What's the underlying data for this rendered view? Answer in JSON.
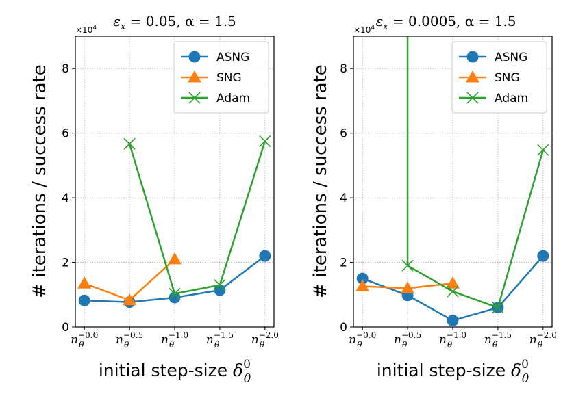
{
  "figure": {
    "ylabel": "# iterations / success rate",
    "xlabel_text": "initial step-size ",
    "xlabel_symbol": "δ",
    "xlabel_sub": "θ",
    "xlabel_sup": "0"
  },
  "chart_data": [
    {
      "type": "line",
      "title": "εx = 0.05, α = 1.5",
      "title_parts": {
        "eps": "ε",
        "eps_sub": "x",
        "rest": " = 0.05, α = 1.5"
      },
      "offset_label": "×10",
      "offset_exp": "4",
      "x_base": "n",
      "x_base_sub": "θ",
      "xtick_exponents": [
        "−0.0",
        "−0.5",
        "−1.0",
        "−1.5",
        "−2.0"
      ],
      "x": [
        0,
        0.5,
        1.0,
        1.5,
        2.0
      ],
      "xlim": [
        -0.1,
        2.1
      ],
      "ylim": [
        0,
        9
      ],
      "yticks": [
        0,
        2,
        4,
        6,
        8
      ],
      "ytick_labels": [
        "0",
        "2",
        "4",
        "6",
        "8"
      ],
      "grid": true,
      "legend_position": "top-right",
      "series": [
        {
          "name": "ASNG",
          "color": "#1f77b4",
          "marker": "circle",
          "values": [
            0.82,
            0.77,
            0.91,
            1.14,
            2.2
          ]
        },
        {
          "name": "SNG",
          "color": "#ff7f0e",
          "marker": "triangle",
          "values": [
            1.35,
            0.83,
            2.1,
            null,
            null
          ]
        },
        {
          "name": "Adam",
          "color": "#2ca02c",
          "marker": "x",
          "values": [
            null,
            5.67,
            1.03,
            1.3,
            5.75
          ]
        }
      ]
    },
    {
      "type": "line",
      "title": "εx = 0.0005, α = 1.5",
      "title_parts": {
        "eps": "ε",
        "eps_sub": "x",
        "rest": " = 0.0005, α = 1.5"
      },
      "offset_label": "×10",
      "offset_exp": "4",
      "x_base": "n",
      "x_base_sub": "θ",
      "xtick_exponents": [
        "−0.0",
        "−0.5",
        "−1.0",
        "−1.5",
        "−2.0"
      ],
      "x": [
        0,
        0.5,
        1.0,
        1.5,
        2.0
      ],
      "xlim": [
        -0.1,
        2.1
      ],
      "ylim": [
        0,
        9
      ],
      "yticks": [
        0,
        2,
        4,
        6,
        8
      ],
      "ytick_labels": [
        "0",
        "2",
        "4",
        "6",
        "8"
      ],
      "grid": true,
      "legend_position": "top-right",
      "series": [
        {
          "name": "ASNG",
          "color": "#1f77b4",
          "marker": "circle",
          "values": [
            1.5,
            0.98,
            0.2,
            0.6,
            2.2
          ]
        },
        {
          "name": "SNG",
          "color": "#ff7f0e",
          "marker": "triangle",
          "values": [
            1.26,
            1.2,
            1.35,
            null,
            null
          ]
        },
        {
          "name": "Adam",
          "color": "#2ca02c",
          "marker": "x",
          "values": [
            null,
            1.9,
            1.1,
            0.6,
            5.48
          ],
          "extra_top_segment": {
            "x_from": 0.5,
            "y_from": 1.9,
            "y_to": 10
          }
        }
      ]
    }
  ]
}
